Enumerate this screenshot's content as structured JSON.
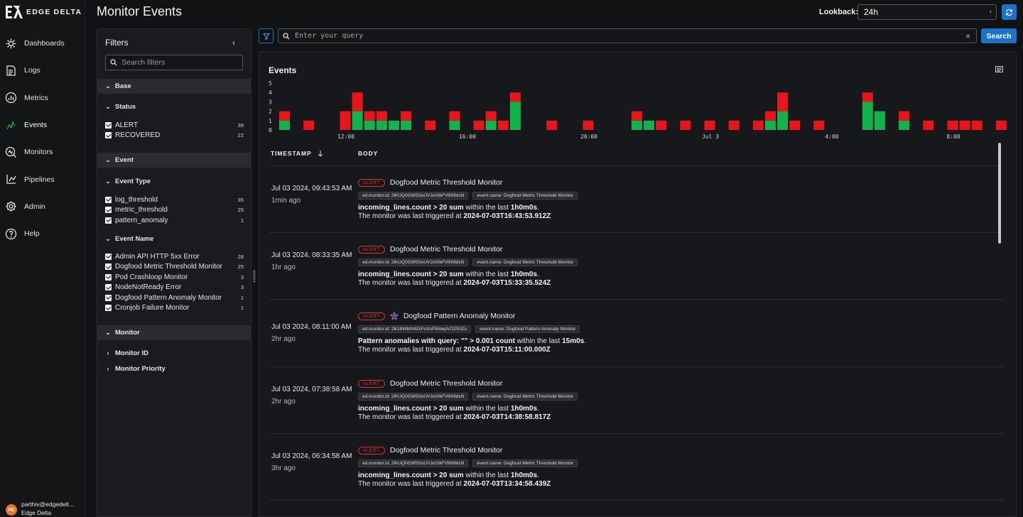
{
  "app": {
    "brand": "EDGE DELTA"
  },
  "nav": [
    {
      "label": "Dashboards",
      "icon": "dashboards-icon"
    },
    {
      "label": "Logs",
      "icon": "logs-icon"
    },
    {
      "label": "Metrics",
      "icon": "metrics-icon"
    },
    {
      "label": "Events",
      "icon": "events-icon",
      "active": true
    },
    {
      "label": "Monitors",
      "icon": "monitors-icon"
    },
    {
      "label": "Pipelines",
      "icon": "pipelines-icon"
    },
    {
      "label": "Admin",
      "icon": "gear-icon"
    },
    {
      "label": "Help",
      "icon": "help-icon"
    }
  ],
  "user": {
    "initials": "PE",
    "email": "parthiv@edgedelt...",
    "org": "Edge Delta"
  },
  "header": {
    "title": "Monitor Events",
    "lookback_label": "Lookback:",
    "lookback_value": "24h"
  },
  "filters": {
    "title": "Filters",
    "search_placeholder": "Search filters",
    "sections": {
      "base": "Base",
      "status": "Status",
      "event": "Event",
      "event_type": "Event Type",
      "event_name": "Event Name",
      "monitor": "Monitor",
      "monitor_id": "Monitor ID",
      "monitor_priority": "Monitor Priority"
    },
    "status_options": [
      {
        "label": "ALERT",
        "count": "39"
      },
      {
        "label": "RECOVERED",
        "count": "22"
      }
    ],
    "event_type_options": [
      {
        "label": "log_threshold",
        "count": "35"
      },
      {
        "label": "metric_threshold",
        "count": "25"
      },
      {
        "label": "pattern_anomaly",
        "count": "1"
      }
    ],
    "event_name_options": [
      {
        "label": "Admin API HTTP 5xx Error",
        "count": "28"
      },
      {
        "label": "Dogfood Metric Threshold Monitor",
        "count": "25"
      },
      {
        "label": "Pod Crashloop Monitor",
        "count": "3"
      },
      {
        "label": "NodeNotReady Error",
        "count": "3"
      },
      {
        "label": "Dogfood Pattern Anomaly Monitor",
        "count": "1"
      },
      {
        "label": "Cronjob Failure Monitor",
        "count": "1"
      }
    ]
  },
  "query": {
    "placeholder": "Enter your query",
    "search_label": "Search"
  },
  "events_panel": {
    "title": "Events"
  },
  "chart_data": {
    "type": "bar",
    "stacked": true,
    "y_ticks": [
      "5",
      "4",
      "3",
      "2",
      "1",
      "0"
    ],
    "ylim": [
      0,
      5
    ],
    "x_tick_labels": [
      {
        "label": "12:00",
        "index": 5
      },
      {
        "label": "16:00",
        "index": 15
      },
      {
        "label": "20:00",
        "index": 25
      },
      {
        "label": "Jul 3",
        "index": 35
      },
      {
        "label": "4:00",
        "index": 45
      },
      {
        "label": "8:00",
        "index": 55
      }
    ],
    "series": [
      {
        "name": "ALERT",
        "color": "#e8151b",
        "values": [
          1,
          0,
          1,
          0,
          0,
          2,
          2,
          1,
          1,
          0,
          1,
          0,
          1,
          0,
          1,
          0,
          1,
          1,
          1,
          1,
          0,
          0,
          1,
          0,
          0,
          1,
          0,
          0,
          0,
          1,
          0,
          1,
          0,
          1,
          0,
          1,
          0,
          1,
          0,
          1,
          1,
          2,
          1,
          0,
          1,
          0,
          0,
          0,
          1,
          0,
          0,
          1,
          0,
          1,
          0,
          1,
          1,
          1,
          0,
          1
        ]
      },
      {
        "name": "RECOVERED",
        "color": "#12b24f",
        "values": [
          1,
          0,
          0,
          0,
          0,
          0,
          2,
          1,
          1,
          1,
          1,
          0,
          0,
          0,
          1,
          0,
          0,
          1,
          0,
          3,
          0,
          0,
          0,
          0,
          0,
          0,
          0,
          0,
          0,
          1,
          1,
          0,
          0,
          0,
          0,
          0,
          0,
          0,
          0,
          0,
          1,
          2,
          0,
          0,
          0,
          0,
          0,
          0,
          3,
          2,
          0,
          1,
          0,
          0,
          0,
          0,
          0,
          0,
          0,
          0
        ]
      }
    ]
  },
  "table": {
    "col_timestamp": "TIMESTAMP",
    "col_body": "BODY"
  },
  "events": [
    {
      "ts": "Jul 03 2024, 09:43:53 AM",
      "ago": "1min ago",
      "badge": "ALERT",
      "name": "Dogfood Metric Threshold Monitor",
      "pattern": false,
      "tag_id": "ed.monitor.id: 2lKUQ0GW5SoUV2eSIkFVlNI9dcN",
      "tag_name": "event.name: Dogfood Metric Threshold Monitor",
      "d1a": "incoming_lines.count > 20 sum",
      "d1b": " within the last ",
      "d1c": "1h0m0s",
      "d1d": ".",
      "d2a": "The monitor was last triggered at ",
      "d2b": "2024-07-03T16:43:53.912Z"
    },
    {
      "ts": "Jul 03 2024, 08:33:35 AM",
      "ago": "1hr ago",
      "badge": "ALERT",
      "name": "Dogfood Metric Threshold Monitor",
      "pattern": false,
      "tag_id": "ed.monitor.id: 2lKUQ0GW5SoUV2eSIkFVlNI9dcN",
      "tag_name": "event.name: Dogfood Metric Threshold Monitor",
      "d1a": "incoming_lines.count > 20 sum",
      "d1b": " within the last ",
      "d1c": "1h0m0s",
      "d1d": ".",
      "d2a": "The monitor was last triggered at ",
      "d2b": "2024-07-03T15:33:35.524Z"
    },
    {
      "ts": "Jul 03 2024, 08:11:00 AM",
      "ago": "2hr ago",
      "badge": "ALERT",
      "name": "Dogfood Pattern Anomaly Monitor",
      "pattern": true,
      "tag_id": "ed.monitor.id: 2lk16WbfAWXFoXnP5NwpVO2S0Zs",
      "tag_name": "event.name: Dogfood Pattern Anomaly Monitor",
      "d1a": "Pattern anomalies with query: \"\" > 0.001 count",
      "d1b": " within the last ",
      "d1c": "15m0s",
      "d1d": ".",
      "d2a": "The monitor was last triggered at ",
      "d2b": "2024-07-03T15:11:00.000Z"
    },
    {
      "ts": "Jul 03 2024, 07:38:58 AM",
      "ago": "2hr ago",
      "badge": "ALERT",
      "name": "Dogfood Metric Threshold Monitor",
      "pattern": false,
      "tag_id": "ed.monitor.id: 2lKUQ0GW5SoUV2eSIkFVlNI9dcN",
      "tag_name": "event.name: Dogfood Metric Threshold Monitor",
      "d1a": "incoming_lines.count > 20 sum",
      "d1b": " within the last ",
      "d1c": "1h0m0s",
      "d1d": ".",
      "d2a": "The monitor was last triggered at ",
      "d2b": "2024-07-03T14:38:58.817Z"
    },
    {
      "ts": "Jul 03 2024, 06:34:58 AM",
      "ago": "3hr ago",
      "badge": "ALERT",
      "name": "Dogfood Metric Threshold Monitor",
      "pattern": false,
      "tag_id": "ed.monitor.id: 2lKUQ0GW5SoUV2eSIkFVlNI9dcN",
      "tag_name": "event.name: Dogfood Metric Threshold Monitor",
      "d1a": "incoming_lines.count > 20 sum",
      "d1b": " within the last ",
      "d1c": "1h0m0s",
      "d1d": ".",
      "d2a": "The monitor was last triggered at ",
      "d2b": "2024-07-03T13:34:58.439Z"
    }
  ]
}
